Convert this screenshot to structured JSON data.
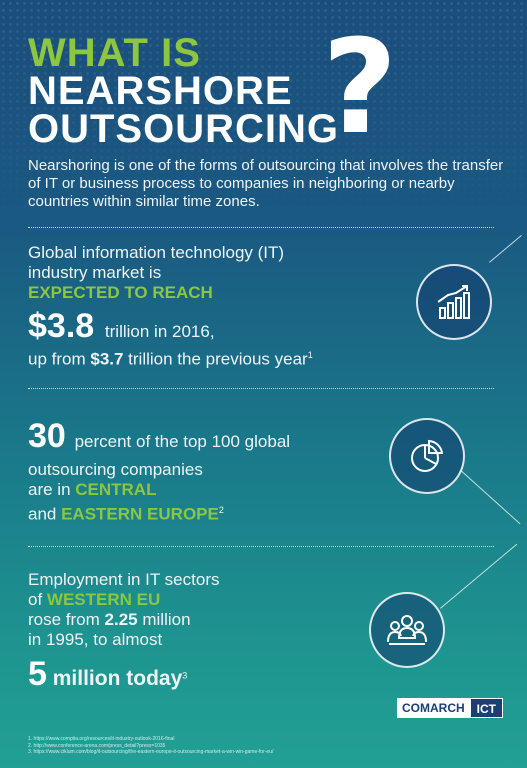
{
  "title": {
    "line1": "WHAT IS",
    "line2": "NEARSHORE",
    "line3": "OUTSOURCING",
    "qmark": "?"
  },
  "intro": "Nearshoring is one of the forms of outsourcing that involves the transfer of IT or business process to companies in neighboring or nearby countries within similar time zones.",
  "section1": {
    "line1": "Global information technology (IT)",
    "line2": "industry market is",
    "highlight": "EXPECTED TO REACH",
    "big_value": "$3.8",
    "after_big": "trillion in 2016,",
    "line_prefix": "up from ",
    "bold_value": "$3.7",
    "line_suffix": " trillion the previous year",
    "footnote": "1",
    "icon": "growth-chart-icon"
  },
  "section2": {
    "big_value": "30",
    "after_big": "percent of the top 100 global",
    "line2": "outsourcing companies",
    "line3_prefix": "are in ",
    "highlight1": "CENTRAL",
    "line4_prefix": "and ",
    "highlight2": "EASTERN EUROPE",
    "footnote": "2",
    "icon": "pie-chart-icon"
  },
  "section3": {
    "line1": "Employment in IT sectors",
    "line2_prefix": "of ",
    "highlight": "WESTERN EU",
    "line3_prefix": "rose from ",
    "bold_value": "2.25",
    "line3_suffix": " million",
    "line4": "in 1995, to almost",
    "big_value": "5",
    "big_suffix": " million today",
    "footnote": "3",
    "icon": "people-group-icon"
  },
  "logo": {
    "brand": "COMARCH",
    "suffix": "ICT"
  },
  "references": [
    "1. https://www.comptia.org/resources/it-industry-outlook-2016-final",
    "2. http://www.conference-arena.com/press_detail?press=1035",
    "3. https://www.ciklum.com/blog/it-outsourcing/the-eastern-europe-it-outsourcing-market-a-win-win-game-for-eu/"
  ],
  "colors": {
    "accent_green": "#8dc63f",
    "bg_top": "#1b4d7c",
    "bg_bottom": "#22a094",
    "brand_blue": "#1b3f74"
  }
}
